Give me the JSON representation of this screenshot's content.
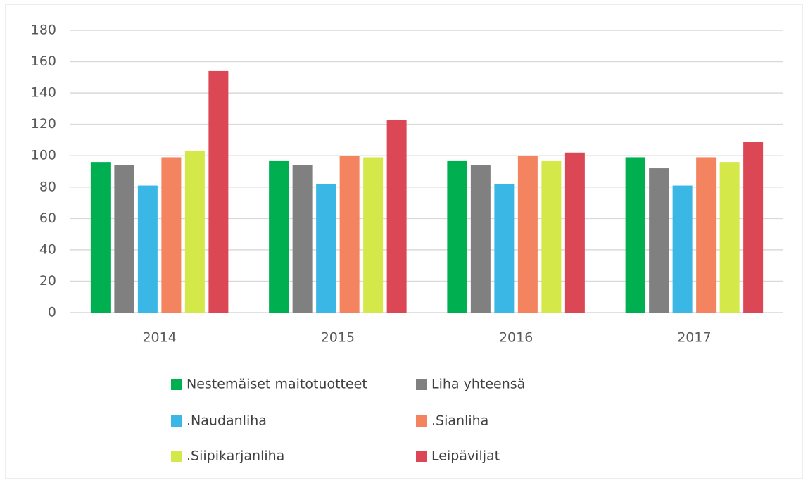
{
  "chart_data": {
    "type": "bar",
    "categories": [
      "2014",
      "2015",
      "2016",
      "2017"
    ],
    "series": [
      {
        "name": "Nestemäiset maitotuotteet",
        "color": "#00b050",
        "values": [
          96,
          97,
          97,
          99
        ]
      },
      {
        "name": "Liha yhteensä",
        "color": "#808080",
        "values": [
          94,
          94,
          94,
          92
        ]
      },
      {
        "name": ".Naudanliha",
        "color": "#3bb7e6",
        "values": [
          81,
          82,
          82,
          81
        ]
      },
      {
        "name": ".Sianliha",
        "color": "#f4845f",
        "values": [
          99,
          100,
          100,
          99
        ]
      },
      {
        "name": ".Siipikarjanliha",
        "color": "#d4e84a",
        "values": [
          103,
          99,
          97,
          96
        ]
      },
      {
        "name": "Leipäviljat",
        "color": "#dc4755",
        "values": [
          154,
          123,
          102,
          109
        ]
      }
    ],
    "ylim": [
      0,
      180
    ],
    "yticks": [
      0,
      20,
      40,
      60,
      80,
      100,
      120,
      140,
      160,
      180
    ],
    "grid": true
  }
}
